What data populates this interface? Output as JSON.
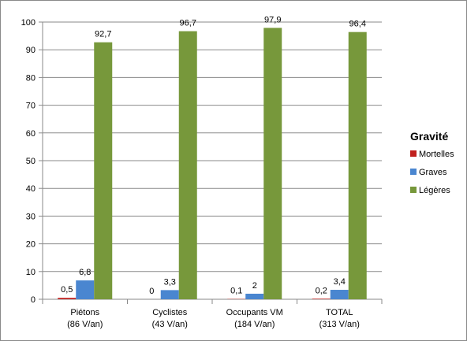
{
  "chart_data": {
    "type": "bar",
    "title": "",
    "xlabel": "",
    "ylabel": "",
    "ylim": [
      0,
      100
    ],
    "yticks": [
      "0",
      "10",
      "20",
      "30",
      "40",
      "50",
      "60",
      "70",
      "80",
      "90",
      "100"
    ],
    "grid": true,
    "legend_position": "right",
    "legend_title": "Gravité",
    "categories": [
      [
        "Piétons",
        "(86 V/an)"
      ],
      [
        "Cyclistes",
        "(43 V/an)"
      ],
      [
        "Occupants VM",
        "(184 V/an)"
      ],
      [
        "TOTAL",
        "(313 V/an)"
      ]
    ],
    "series": [
      {
        "name": "Mortelles",
        "color": "#c0201e",
        "values": [
          0.5,
          0,
          0.1,
          0.2
        ],
        "labels": [
          "0,5",
          "0",
          "0,1",
          "0,2"
        ]
      },
      {
        "name": "Graves",
        "color": "#4a86d0",
        "values": [
          6.8,
          3.3,
          2,
          3.4
        ],
        "labels": [
          "6,8",
          "3,3",
          "2",
          "3,4"
        ]
      },
      {
        "name": "Légères",
        "color": "#77983b",
        "values": [
          92.7,
          96.7,
          97.9,
          96.4
        ],
        "labels": [
          "92,7",
          "96,7",
          "97,9",
          "96,4"
        ]
      }
    ]
  }
}
